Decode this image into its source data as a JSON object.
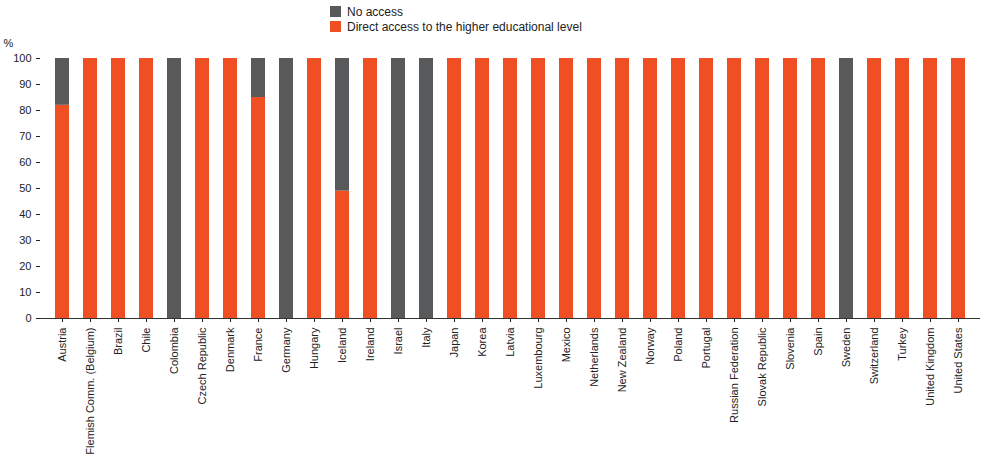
{
  "chart_data": {
    "type": "bar",
    "stacked": true,
    "y_label": "%",
    "categories": [
      "Austria",
      "Flemish Comm. (Belgium)",
      "Brazil",
      "Chile",
      "Colombia",
      "Czech Republic",
      "Denmark",
      "France",
      "Germany",
      "Hungary",
      "Iceland",
      "Ireland",
      "Israel",
      "Italy",
      "Japan",
      "Korea",
      "Latvia",
      "Luxembourg",
      "Mexico",
      "Netherlands",
      "New Zealand",
      "Norway",
      "Poland",
      "Portugal",
      "Russian Federation",
      "Slovak Republic",
      "Slovenia",
      "Spain",
      "Sweden",
      "Switzerland",
      "Turkey",
      "United Kingdom",
      "United States"
    ],
    "series": [
      {
        "name": "No access",
        "color": "#58595b",
        "values": [
          18,
          0,
          0,
          0,
          100,
          0,
          0,
          15,
          100,
          0,
          51,
          0,
          100,
          100,
          0,
          0,
          0,
          0,
          0,
          0,
          0,
          0,
          0,
          0,
          0,
          0,
          0,
          0,
          100,
          0,
          0,
          0,
          0
        ]
      },
      {
        "name": "Direct access to the higher educational level",
        "color": "#f04e23",
        "values": [
          82,
          100,
          100,
          100,
          0,
          100,
          100,
          85,
          0,
          100,
          49,
          100,
          0,
          0,
          100,
          100,
          100,
          100,
          100,
          100,
          100,
          100,
          100,
          100,
          100,
          100,
          100,
          100,
          0,
          100,
          100,
          100,
          100
        ]
      }
    ],
    "ylim": [
      0,
      100
    ],
    "yticks": [
      0,
      10,
      20,
      30,
      40,
      50,
      60,
      70,
      80,
      90,
      100
    ],
    "grid": false,
    "legend": "top"
  }
}
